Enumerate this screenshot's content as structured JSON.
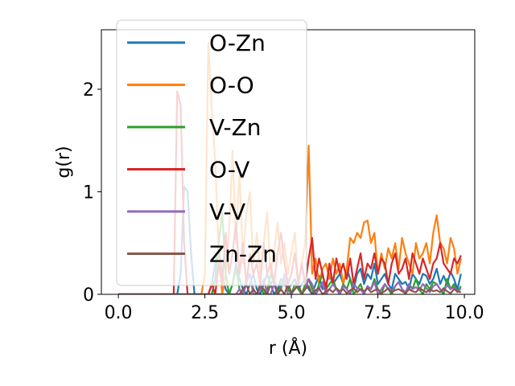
{
  "chart_data": {
    "type": "line",
    "title": "",
    "xlabel": "r (Å)",
    "ylabel": "g(r)",
    "xlim": [
      -0.49,
      10.3
    ],
    "ylim": [
      0,
      2.58
    ],
    "xticks": [
      0.0,
      2.5,
      5.0,
      7.5,
      10.0
    ],
    "xtick_labels": [
      "0.0",
      "2.5",
      "5.0",
      "7.5",
      "10.0"
    ],
    "yticks": [
      0,
      1,
      2
    ],
    "ytick_labels": [
      "0",
      "1",
      "2"
    ],
    "grid": false,
    "legend_position": "upper-left",
    "legend_alpha": 0.8,
    "x": [
      0.0,
      0.1,
      0.2,
      0.3,
      0.4,
      0.5,
      0.6,
      0.7,
      0.8,
      0.9,
      1.0,
      1.1,
      1.2,
      1.3,
      1.4,
      1.5,
      1.6,
      1.7,
      1.8,
      1.9,
      2.0,
      2.1,
      2.2,
      2.3,
      2.4,
      2.5,
      2.6,
      2.7,
      2.8,
      2.9,
      3.0,
      3.1,
      3.2,
      3.3,
      3.4,
      3.5,
      3.6,
      3.7,
      3.8,
      3.9,
      4.0,
      4.1,
      4.2,
      4.3,
      4.4,
      4.5,
      4.6,
      4.7,
      4.8,
      4.9,
      5.0,
      5.1,
      5.2,
      5.3,
      5.4,
      5.5,
      5.6,
      5.7,
      5.8,
      5.9,
      6.0,
      6.1,
      6.2,
      6.3,
      6.4,
      6.5,
      6.6,
      6.7,
      6.8,
      6.9,
      7.0,
      7.1,
      7.2,
      7.3,
      7.4,
      7.5,
      7.6,
      7.7,
      7.8,
      7.9,
      8.0,
      8.1,
      8.2,
      8.3,
      8.4,
      8.5,
      8.6,
      8.7,
      8.8,
      8.9,
      9.0,
      9.1,
      9.2,
      9.3,
      9.4,
      9.5,
      9.6,
      9.7,
      9.8,
      9.9
    ],
    "series": [
      {
        "name": "O-Zn",
        "color": "#1f77b4",
        "values": [
          0,
          0,
          0,
          0,
          0,
          0,
          0,
          0,
          0,
          0,
          0,
          0,
          0,
          0,
          0,
          0,
          0,
          0,
          0.2,
          1.05,
          1.0,
          0.4,
          0,
          0,
          0,
          0,
          0,
          0.1,
          0.3,
          0.45,
          0.2,
          0.05,
          0,
          0.1,
          0.3,
          0.15,
          0.05,
          0,
          0.1,
          0.2,
          0.05,
          0,
          0.1,
          0.2,
          0.1,
          0,
          0.05,
          0.15,
          0.1,
          0.05,
          0.1,
          0.15,
          0.05,
          0.1,
          0.15,
          0.05,
          0,
          0.1,
          0.18,
          0.05,
          0.1,
          0.2,
          0.1,
          0.15,
          0.2,
          0.1,
          0.25,
          0.15,
          0.05,
          0.2,
          0.25,
          0.1,
          0.2,
          0.15,
          0.3,
          0.1,
          0.15,
          0.2,
          0.1,
          0.05,
          0.2,
          0.15,
          0.1,
          0.12,
          0.05,
          0.2,
          0.15,
          0.1,
          0.2,
          0.18,
          0.1,
          0.15,
          0.25,
          0.1,
          0.18,
          0.1,
          0.22,
          0.15,
          0.05,
          0.2
        ]
      },
      {
        "name": "O-O",
        "color": "#ff7f0e",
        "values": [
          0,
          0,
          0,
          0,
          0,
          0,
          0,
          0,
          0,
          0,
          0,
          0,
          0,
          0,
          0,
          0,
          0,
          0,
          0,
          0,
          0,
          0,
          0,
          0,
          0,
          0.2,
          2.45,
          1.8,
          1.3,
          0.4,
          0,
          0.2,
          0.6,
          1.4,
          0.5,
          1.2,
          0.3,
          0.8,
          1.0,
          0.3,
          0.6,
          0.2,
          0.5,
          0.8,
          0.2,
          0.4,
          0.7,
          0.3,
          0.5,
          0.2,
          0.4,
          0.6,
          0.1,
          0.3,
          0.5,
          1.45,
          0.2,
          0.35,
          0.1,
          0.25,
          0.3,
          0.15,
          0.35,
          0.2,
          0.3,
          0.1,
          0.25,
          0.55,
          0.5,
          0.6,
          0.55,
          0.7,
          0.72,
          0.5,
          0.6,
          0.2,
          0.4,
          0.25,
          0.45,
          0.35,
          0.5,
          0.25,
          0.55,
          0.4,
          0.3,
          0.2,
          0.5,
          0.35,
          0.4,
          0.5,
          0.3,
          0.6,
          0.77,
          0.5,
          0.45,
          0.3,
          0.55,
          0.45,
          0.2,
          0.35
        ]
      },
      {
        "name": "V-Zn",
        "color": "#2ca02c",
        "values": [
          0,
          0,
          0,
          0,
          0,
          0,
          0,
          0,
          0,
          0,
          0,
          0,
          0,
          0,
          0,
          0,
          0,
          0,
          0,
          0,
          0,
          0,
          0,
          0,
          0,
          0,
          0,
          0,
          0.15,
          0.5,
          0.8,
          0.2,
          0,
          0.1,
          0.25,
          0.05,
          0,
          0.15,
          0.2,
          0.05,
          0,
          0.1,
          0,
          0.05,
          0.2,
          0.1,
          0,
          0.1,
          0.15,
          0.05,
          0,
          0.1,
          0.05,
          0,
          0.1,
          0.15,
          0.05,
          0,
          0.1,
          0.2,
          0.05,
          0.1,
          0.15,
          0.05,
          0,
          0.1,
          0.05,
          0.15,
          0,
          0.05,
          0.1,
          0,
          0.08,
          0.05,
          0.15,
          0.05,
          0,
          0.1,
          0.05,
          0,
          0.08,
          0.12,
          0.05,
          0,
          0.1,
          0.05,
          0.15,
          0.05,
          0,
          0.1,
          0.05,
          0.12,
          0.1,
          0.05,
          0,
          0.15,
          0.05,
          0.1,
          0.02,
          0.08
        ]
      },
      {
        "name": "O-V",
        "color": "#d62728",
        "values": [
          0,
          0,
          0,
          0,
          0,
          0,
          0,
          0,
          0,
          0,
          0,
          0,
          0,
          0,
          0,
          0,
          0,
          1.98,
          1.85,
          0.5,
          0,
          0,
          0,
          0,
          0,
          0,
          0,
          0.1,
          0,
          0.3,
          0.1,
          0.6,
          0.2,
          0.4,
          0.7,
          0.2,
          0.5,
          0.1,
          0.4,
          0.2,
          0.3,
          0.1,
          0.5,
          0.2,
          0.3,
          0.1,
          0.4,
          0.6,
          0.3,
          0.1,
          0.2,
          0.4,
          0.1,
          0.3,
          0.1,
          0.35,
          0.55,
          0.15,
          0.35,
          0.2,
          0.05,
          0.3,
          0.1,
          0.35,
          0.2,
          0.3,
          0.15,
          0.35,
          0.1,
          0.25,
          0.4,
          0.15,
          0.3,
          0.25,
          0.4,
          0.2,
          0.35,
          0.3,
          0.1,
          0.3,
          0.4,
          0.2,
          0.25,
          0.35,
          0.15,
          0.4,
          0.3,
          0.2,
          0.35,
          0.25,
          0.15,
          0.3,
          0.35,
          0.5,
          0.3,
          0.25,
          0.2,
          0.35,
          0.3,
          0.38
        ]
      },
      {
        "name": "V-V",
        "color": "#9467bd",
        "values": [
          0,
          0,
          0,
          0,
          0,
          0,
          0,
          0,
          0,
          0,
          0,
          0,
          0,
          0,
          0,
          0,
          0,
          0,
          0,
          0,
          0,
          0,
          0,
          0,
          0,
          0,
          0,
          0,
          0,
          0,
          0,
          0,
          0,
          0,
          0,
          0.05,
          0,
          0.1,
          0.2,
          0,
          0,
          0.05,
          0.15,
          0,
          0,
          0.1,
          0,
          0.05,
          0.2,
          0,
          0,
          0.05,
          0.1,
          0,
          0.05,
          0.15,
          0.1,
          0,
          0.05,
          0.12,
          0,
          0.05,
          0.1,
          0.05,
          0,
          0.08,
          0.05,
          0,
          0.1,
          0.06,
          0.05,
          0,
          0.08,
          0.05,
          0.12,
          0,
          0.05,
          0.1,
          0.05,
          0.03,
          0.08,
          0.12,
          0.05,
          0.02,
          0.1,
          0.05,
          0.07,
          0.04,
          0.1,
          0.06,
          0.02,
          0.08,
          0.1,
          0.05,
          0.03,
          0.09,
          0.05,
          0.07,
          0.02,
          0.06
        ]
      },
      {
        "name": "Zn-Zn",
        "color": "#8c564b",
        "values": [
          0,
          0,
          0,
          0,
          0,
          0,
          0,
          0,
          0,
          0,
          0,
          0,
          0,
          0,
          0,
          0,
          0,
          0,
          0,
          0,
          0,
          0,
          0,
          0,
          0,
          0,
          0,
          0,
          0,
          0,
          0,
          0,
          0,
          0,
          0,
          0,
          0.05,
          0.1,
          0,
          0.05,
          0,
          0.1,
          0.05,
          0,
          0.1,
          0.15,
          0,
          0.05,
          0,
          0.1,
          0.02,
          0.05,
          0.1,
          0,
          0.05,
          0.08,
          0,
          0.04,
          0.06,
          0,
          0.03,
          0.05,
          0.02,
          0.06,
          0.03,
          0.05,
          0.01,
          0.04,
          0.06,
          0.02,
          0.05,
          0.03,
          0.06,
          0.02,
          0.04,
          0.05,
          0.01,
          0.03,
          0.06,
          0.02,
          0.04,
          0.05,
          0.03,
          0.01,
          0.05,
          0.03,
          0.02,
          0.06,
          0.04,
          0.02,
          0.05,
          0.03,
          0.04,
          0.02,
          0.06,
          0.03,
          0.01,
          0.05,
          0.03,
          0.02
        ]
      }
    ]
  }
}
